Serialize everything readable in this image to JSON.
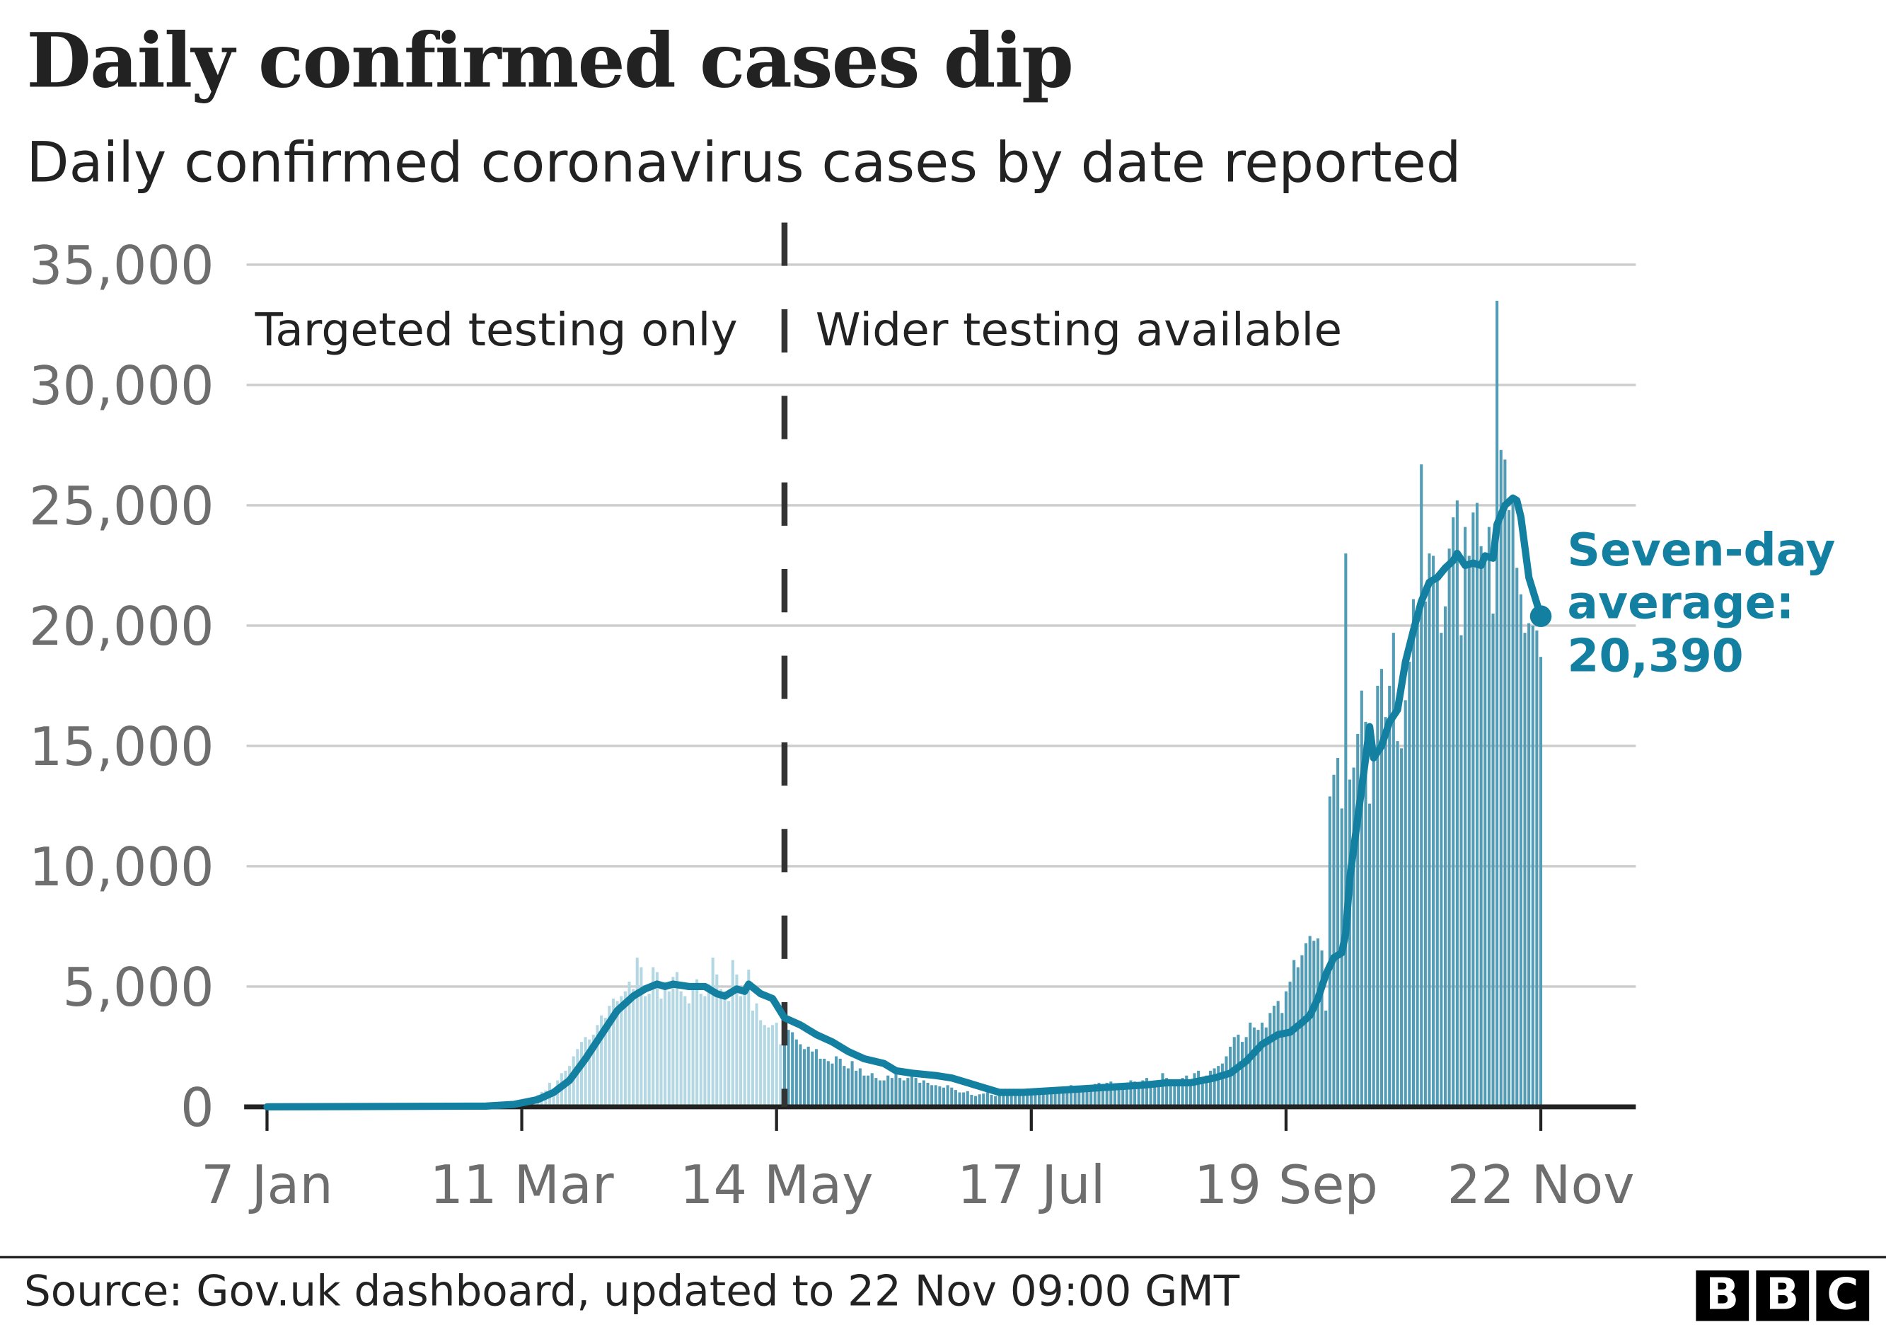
{
  "chart_data": {
    "type": "bar",
    "title": "Daily confirmed cases dip",
    "subtitle": "Daily confirmed coronavirus cases by date reported",
    "xlabel": "",
    "ylabel": "",
    "ylim": [
      0,
      35000
    ],
    "yticks": [
      0,
      5000,
      10000,
      15000,
      20000,
      25000,
      30000,
      35000
    ],
    "ytick_labels": [
      "0",
      "5,000",
      "10,000",
      "15,000",
      "20,000",
      "25,000",
      "30,000",
      "35,000"
    ],
    "x_unit": "days since 7 Jan 2020",
    "xlim": [
      0,
      320
    ],
    "xticks": [
      0,
      64,
      128,
      192,
      256,
      320
    ],
    "xtick_labels": [
      "7 Jan",
      "11 Mar",
      "14 May",
      "17 Jul",
      "19 Sep",
      "22 Nov"
    ],
    "grid": true,
    "annotations": {
      "left_region": "Targeted testing only",
      "right_region": "Wider testing available",
      "divider_day": 130,
      "avg_label_line1": "Seven-day",
      "avg_label_line2": "average:",
      "avg_label_value": "20,390"
    },
    "colors": {
      "bars_targeted": "#b3d8e3",
      "bars_wider": "#529cb6",
      "average_line": "#1380a1",
      "divider": "#333333"
    },
    "series": [
      {
        "name": "Daily confirmed cases",
        "kind": "bar",
        "start_day": 50,
        "values": [
          3,
          5,
          8,
          10,
          12,
          20,
          30,
          40,
          50,
          60,
          70,
          90,
          130,
          150,
          210,
          250,
          320,
          400,
          500,
          620,
          680,
          1000,
          650,
          1100,
          1400,
          1500,
          1700,
          2100,
          2400,
          2700,
          2900,
          2800,
          3000,
          3400,
          3800,
          3700,
          4200,
          4500,
          4400,
          4600,
          4800,
          5200,
          4900,
          6200,
          5800,
          4600,
          4700,
          5800,
          5600,
          4500,
          5200,
          4800,
          5400,
          5600,
          4800,
          4600,
          4300,
          5000,
          5300,
          4700,
          4600,
          5100,
          6200,
          5500,
          4900,
          4800,
          4400,
          6100,
          5500,
          4600,
          4900,
          5700,
          4000,
          4300,
          3600,
          3400,
          3300,
          3400,
          3500,
          2600,
          2700,
          3200,
          3100,
          2800,
          2600,
          2400,
          2500,
          2300,
          2400,
          2000,
          2000,
          1900,
          1800,
          2100,
          2000,
          1700,
          1600,
          1900,
          1500,
          1600,
          1300,
          1300,
          1400,
          1200,
          1100,
          1100,
          1300,
          1200,
          1400,
          1200,
          1100,
          1200,
          1300,
          1200,
          1000,
          1100,
          1000,
          900,
          900,
          850,
          800,
          900,
          800,
          700,
          600,
          600,
          650,
          500,
          450,
          520,
          550,
          600,
          500,
          450,
          500,
          550,
          600,
          650,
          700,
          600,
          580,
          620,
          650,
          700,
          720,
          650,
          600,
          700,
          750,
          800,
          800,
          850,
          900,
          750,
          700,
          800,
          850,
          900,
          950,
          1000,
          950,
          1000,
          1050,
          900,
          850,
          950,
          1000,
          1100,
          1050,
          900,
          1100,
          1200,
          1000,
          1000,
          1100,
          1400,
          1200,
          1000,
          1100,
          1050,
          1200,
          1300,
          1100,
          1400,
          1500,
          1200,
          1300,
          1500,
          1600,
          1700,
          1800,
          2100,
          2500,
          2900,
          3000,
          2700,
          2900,
          3500,
          3300,
          3200,
          3500,
          3300,
          3900,
          4200,
          4400,
          3900,
          4800,
          5200,
          6100,
          5800,
          6300,
          6800,
          7100,
          6900,
          7000,
          6500,
          4000,
          12900,
          13800,
          14500,
          12400,
          23000,
          13600,
          14100,
          15500,
          17300,
          16000,
          12600,
          14600,
          17500,
          18200,
          16200,
          17500,
          19700,
          15200,
          14900,
          16900,
          18500,
          21100,
          20000,
          26700,
          21000,
          23000,
          22900,
          22000,
          19700,
          20800,
          23200,
          24500,
          25200,
          19600,
          24100,
          22900,
          24700,
          25100,
          23300,
          22900,
          24100,
          20500,
          33500,
          27300,
          26900,
          24800,
          25100,
          22400,
          21300,
          19700,
          20100,
          20000,
          19800,
          18700
        ]
      },
      {
        "name": "Seven-day average",
        "kind": "line",
        "points": [
          [
            0,
            0
          ],
          [
            55,
            30
          ],
          [
            62,
            100
          ],
          [
            68,
            300
          ],
          [
            72,
            600
          ],
          [
            76,
            1100
          ],
          [
            80,
            2000
          ],
          [
            84,
            3000
          ],
          [
            88,
            4000
          ],
          [
            92,
            4600
          ],
          [
            95,
            4900
          ],
          [
            98,
            5100
          ],
          [
            100,
            5000
          ],
          [
            102,
            5100
          ],
          [
            106,
            5000
          ],
          [
            110,
            5000
          ],
          [
            113,
            4700
          ],
          [
            115,
            4600
          ],
          [
            118,
            4900
          ],
          [
            120,
            4800
          ],
          [
            121,
            5100
          ],
          [
            124,
            4700
          ],
          [
            127,
            4500
          ],
          [
            130,
            3700
          ],
          [
            134,
            3400
          ],
          [
            138,
            3000
          ],
          [
            142,
            2700
          ],
          [
            146,
            2300
          ],
          [
            150,
            2000
          ],
          [
            155,
            1800
          ],
          [
            158,
            1500
          ],
          [
            162,
            1400
          ],
          [
            168,
            1300
          ],
          [
            172,
            1200
          ],
          [
            176,
            1000
          ],
          [
            180,
            800
          ],
          [
            184,
            600
          ],
          [
            190,
            600
          ],
          [
            200,
            700
          ],
          [
            210,
            800
          ],
          [
            220,
            900
          ],
          [
            226,
            1000
          ],
          [
            232,
            1000
          ],
          [
            238,
            1200
          ],
          [
            242,
            1400
          ],
          [
            246,
            1900
          ],
          [
            250,
            2600
          ],
          [
            254,
            3000
          ],
          [
            257,
            3100
          ],
          [
            260,
            3500
          ],
          [
            262,
            3800
          ],
          [
            264,
            4500
          ],
          [
            266,
            5500
          ],
          [
            268,
            6200
          ],
          [
            270,
            6400
          ],
          [
            271,
            7200
          ],
          [
            272,
            9500
          ],
          [
            274,
            12000
          ],
          [
            276,
            14500
          ],
          [
            277,
            15800
          ],
          [
            278,
            14500
          ],
          [
            280,
            15000
          ],
          [
            282,
            16000
          ],
          [
            284,
            16500
          ],
          [
            286,
            18500
          ],
          [
            288,
            19800
          ],
          [
            290,
            21000
          ],
          [
            292,
            21800
          ],
          [
            294,
            22000
          ],
          [
            296,
            22400
          ],
          [
            298,
            22700
          ],
          [
            299,
            23000
          ],
          [
            301,
            22500
          ],
          [
            303,
            22600
          ],
          [
            305,
            22500
          ],
          [
            306,
            22900
          ],
          [
            308,
            22800
          ],
          [
            309,
            24200
          ],
          [
            311,
            25000
          ],
          [
            313,
            25300
          ],
          [
            314,
            25200
          ],
          [
            315,
            24500
          ],
          [
            317,
            22000
          ],
          [
            320,
            20390
          ]
        ]
      }
    ]
  },
  "footer": {
    "source": "Source: Gov.uk dashboard, updated to 22 Nov 09:00 GMT",
    "logo_letters": [
      "B",
      "B",
      "C"
    ]
  }
}
